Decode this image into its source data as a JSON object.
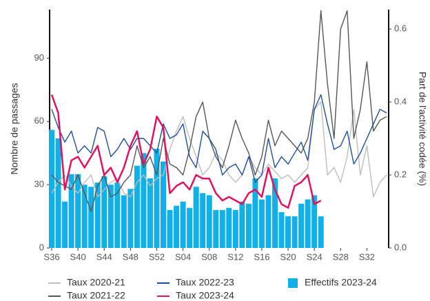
{
  "chart_data": {
    "type": "bar",
    "y_label": "Nombre de passages",
    "y2_label": "Part de l'activité codée (%)",
    "categories": [
      "S36",
      null,
      null,
      null,
      "S40",
      null,
      null,
      null,
      "S44",
      null,
      null,
      null,
      "S48",
      null,
      null,
      null,
      "S52",
      null,
      null,
      null,
      "S04",
      null,
      null,
      null,
      "S08",
      null,
      null,
      null,
      "S12",
      null,
      null,
      null,
      "S16",
      null,
      null,
      null,
      "S20",
      null,
      null,
      null,
      "S24",
      null,
      null,
      null,
      "S28",
      null,
      null,
      null,
      "S32",
      null,
      null,
      null
    ],
    "ylim": [
      0,
      113
    ],
    "yticks": [
      0,
      30,
      60,
      90
    ],
    "y2lim": [
      0,
      0.653
    ],
    "y2ticks": [
      {
        "value": 0,
        "label": "0.0"
      },
      0.2,
      0.4,
      0.6
    ],
    "series": [
      {
        "name": "Taux 2020-21",
        "type": "line",
        "axis": "y2",
        "color": "#bdbdbd",
        "values": [
          0.15,
          0.18,
          0.2,
          0.17,
          0.15,
          0.18,
          0.2,
          0.14,
          0.16,
          0.18,
          0.19,
          0.15,
          0.14,
          0.18,
          0.2,
          0.17,
          0.19,
          0.2,
          0.27,
          0.32,
          0.36,
          0.3,
          0.25,
          0.2,
          0.22,
          0.26,
          0.24,
          0.2,
          0.18,
          0.2,
          0.25,
          0.22,
          0.2,
          0.23,
          0.21,
          0.19,
          0.2,
          0.18,
          0.2,
          0.22,
          0.38,
          0.4,
          0.2,
          0.22,
          0.18,
          0.25,
          0.38,
          0.2,
          0.28,
          0.14,
          0.18,
          0.2
        ]
      },
      {
        "name": "Taux 2021-22",
        "type": "line",
        "axis": "y2",
        "color": "#555555",
        "values": [
          0.2,
          0.18,
          0.17,
          0.16,
          0.2,
          0.15,
          0.1,
          0.17,
          0.2,
          0.14,
          0.15,
          0.18,
          0.2,
          0.28,
          0.22,
          0.25,
          0.2,
          0.3,
          0.23,
          0.22,
          0.2,
          0.27,
          0.36,
          0.4,
          0.3,
          0.25,
          0.22,
          0.28,
          0.35,
          0.3,
          0.26,
          0.2,
          0.25,
          0.35,
          0.28,
          0.32,
          0.3,
          0.28,
          0.26,
          0.3,
          0.4,
          0.65,
          0.45,
          0.3,
          0.6,
          0.65,
          0.3,
          0.38,
          0.51,
          0.32,
          0.35,
          0.36
        ]
      },
      {
        "name": "Taux 2022-23",
        "type": "line",
        "axis": "y2",
        "color": "#1f4e99",
        "values": [
          0.38,
          0.33,
          0.29,
          0.32,
          0.26,
          0.28,
          0.26,
          0.33,
          0.32,
          0.25,
          0.27,
          0.3,
          0.27,
          0.3,
          0.3,
          0.28,
          0.26,
          0.34,
          0.3,
          0.31,
          0.34,
          0.25,
          0.22,
          0.32,
          0.3,
          0.27,
          0.2,
          0.22,
          0.23,
          0.2,
          0.25,
          0.18,
          0.2,
          0.3,
          0.22,
          0.25,
          0.23,
          0.26,
          0.29,
          0.24,
          0.38,
          0.42,
          0.34,
          0.27,
          0.28,
          0.32,
          0.23,
          0.26,
          0.3,
          0.34,
          0.38,
          0.37
        ]
      },
      {
        "name": "Taux 2023-24",
        "type": "line",
        "axis": "y2",
        "color": "#e0115f",
        "values": [
          0.42,
          0.37,
          0.16,
          0.24,
          0.25,
          0.22,
          0.25,
          0.28,
          0.2,
          0.22,
          0.18,
          0.22,
          0.28,
          0.32,
          0.23,
          0.27,
          0.36,
          0.33,
          0.15,
          0.17,
          0.18,
          0.16,
          0.2,
          0.19,
          0.19,
          0.15,
          0.13,
          0.14,
          0.13,
          0.12,
          0.15,
          0.16,
          0.14,
          0.22,
          0.16,
          0.12,
          0.11,
          0.17,
          0.18,
          0.2,
          0.12,
          0.13,
          null,
          null,
          null,
          null,
          null,
          null,
          null,
          null,
          null,
          null
        ]
      },
      {
        "name": "Effectifs 2023-24",
        "type": "bar",
        "axis": "y",
        "color": "#12b0e8",
        "values": [
          56,
          52,
          22,
          35,
          35,
          30,
          29,
          31,
          34,
          30,
          31,
          25,
          28,
          39,
          45,
          33,
          47,
          41,
          18,
          20,
          22,
          19,
          29,
          26,
          25,
          18,
          18,
          19,
          18,
          22,
          21,
          33,
          23,
          25,
          33,
          17,
          15,
          15,
          21,
          23,
          25,
          15,
          null,
          null,
          null,
          null,
          null,
          null,
          null,
          null,
          null,
          null
        ]
      }
    ]
  }
}
